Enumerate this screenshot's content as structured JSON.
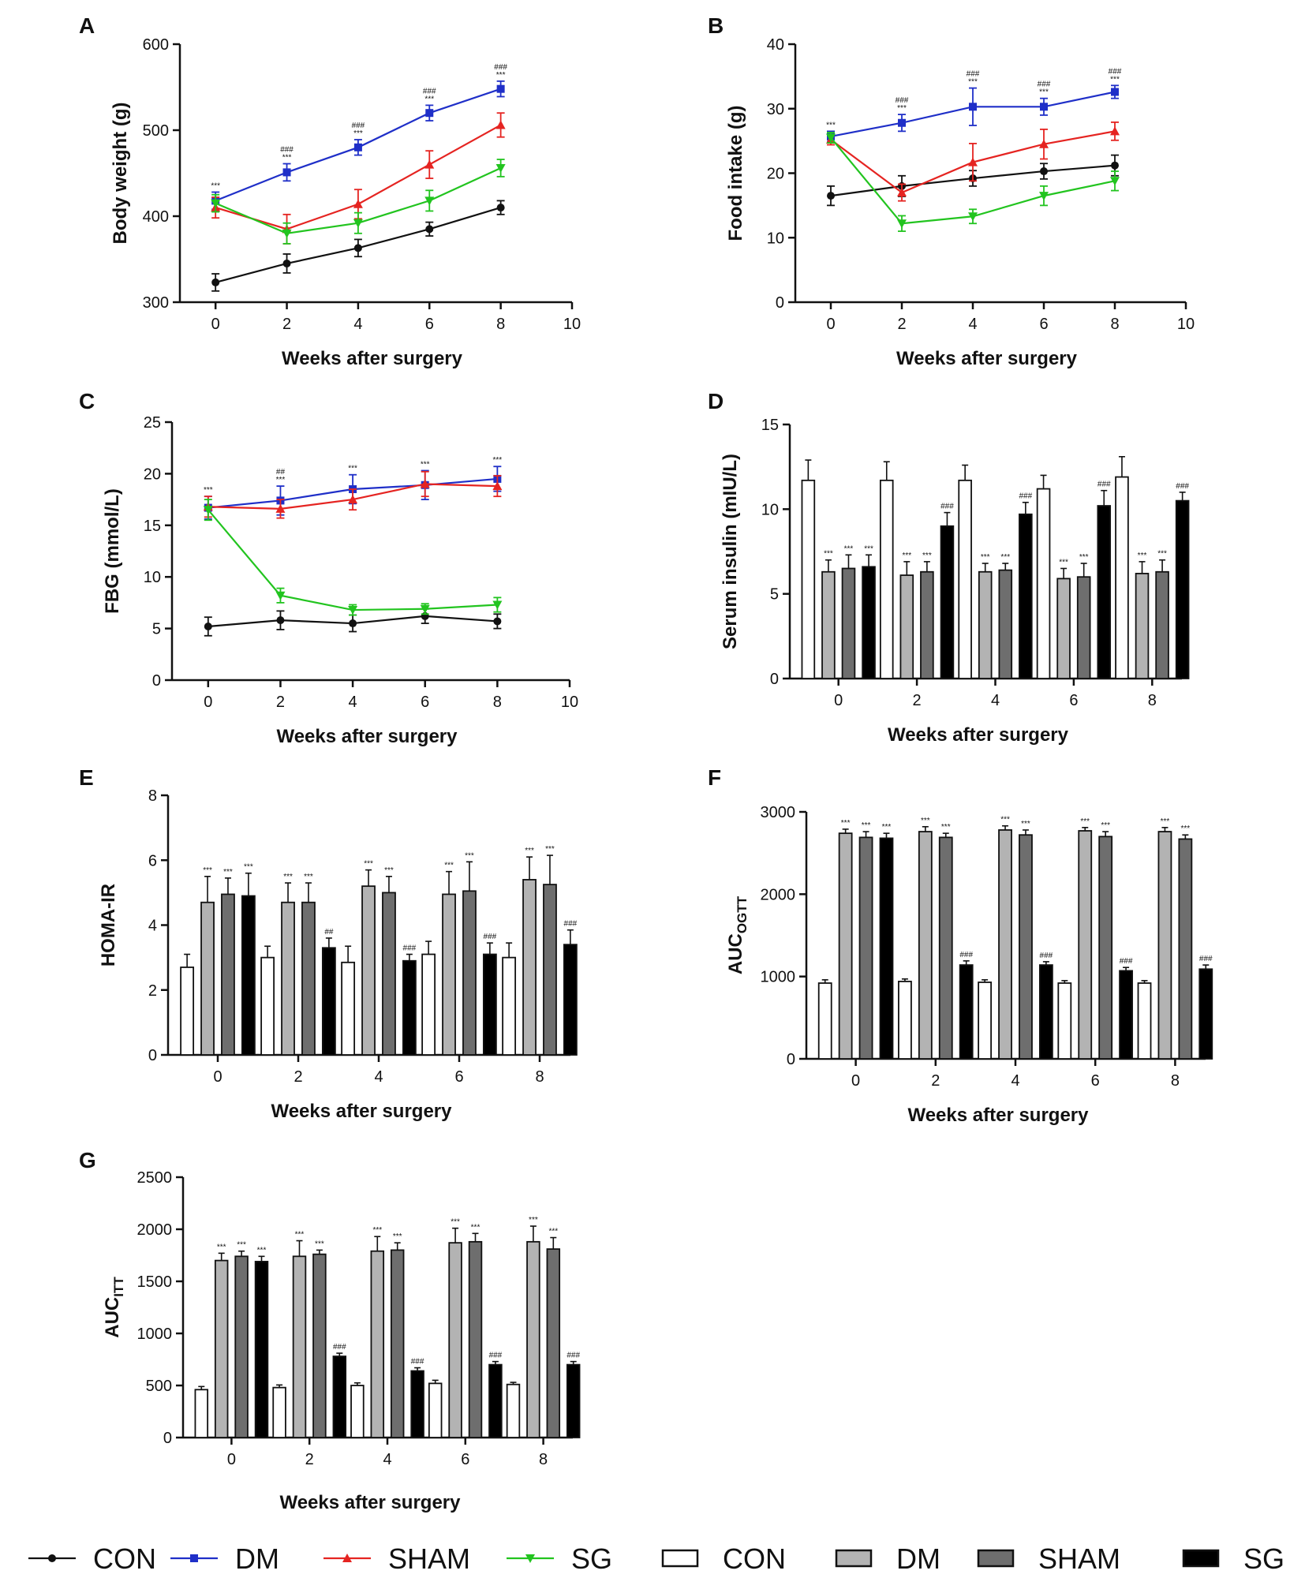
{
  "figure": {
    "background": "#ffffff"
  },
  "line_legend": [
    {
      "name": "CON",
      "color": "#111111",
      "marker": "circle"
    },
    {
      "name": "DM",
      "color": "#1f2fc8",
      "marker": "square"
    },
    {
      "name": "SHAM",
      "color": "#e52421",
      "marker": "triangle-up"
    },
    {
      "name": "SG",
      "color": "#22c41f",
      "marker": "triangle-down"
    }
  ],
  "bar_legend": [
    {
      "name": "CON",
      "fill": "#ffffff"
    },
    {
      "name": "DM",
      "fill": "#b3b3b3"
    },
    {
      "name": "SHAM",
      "fill": "#6e6e6e"
    },
    {
      "name": "SG",
      "fill": "#000000"
    }
  ],
  "chart_data": [
    {
      "panel": "A",
      "type": "line",
      "xlabel": "Weeks after surgery",
      "ylabel": "Body weight (g)",
      "xlim": [
        -1,
        10
      ],
      "ylim": [
        300,
        600
      ],
      "xticks": [
        0,
        2,
        4,
        6,
        8,
        10
      ],
      "yticks": [
        300,
        400,
        500,
        600
      ],
      "x": [
        0,
        2,
        4,
        6,
        8
      ],
      "series": [
        {
          "name": "CON",
          "values": [
            323,
            345,
            363,
            385,
            410
          ],
          "errors": [
            10,
            11,
            10,
            8,
            8
          ]
        },
        {
          "name": "DM",
          "values": [
            418,
            451,
            480,
            520,
            548
          ],
          "errors": [
            10,
            10,
            9,
            9,
            9
          ]
        },
        {
          "name": "SHAM",
          "values": [
            410,
            385,
            414,
            460,
            506
          ],
          "errors": [
            12,
            17,
            17,
            16,
            14
          ]
        },
        {
          "name": "SG",
          "values": [
            415,
            380,
            392,
            418,
            456
          ],
          "errors": [
            10,
            12,
            12,
            12,
            10
          ]
        }
      ],
      "annotations": [
        {
          "x": 0,
          "texts": [
            "***"
          ]
        },
        {
          "x": 2,
          "texts": [
            "###",
            "***"
          ]
        },
        {
          "x": 4,
          "texts": [
            "###",
            "***"
          ]
        },
        {
          "x": 6,
          "texts": [
            "###",
            "***"
          ]
        },
        {
          "x": 8,
          "texts": [
            "###",
            "***"
          ]
        }
      ]
    },
    {
      "panel": "B",
      "type": "line",
      "xlabel": "Weeks after surgery",
      "ylabel": "Food intake (g)",
      "xlim": [
        -1,
        10
      ],
      "ylim": [
        0,
        40
      ],
      "xticks": [
        0,
        2,
        4,
        6,
        8,
        10
      ],
      "yticks": [
        0,
        10,
        20,
        30,
        40
      ],
      "x": [
        0,
        2,
        4,
        6,
        8
      ],
      "series": [
        {
          "name": "CON",
          "values": [
            16.5,
            18.0,
            19.2,
            20.3,
            21.2
          ],
          "errors": [
            1.5,
            1.6,
            1.2,
            1.2,
            1.6
          ]
        },
        {
          "name": "DM",
          "values": [
            25.7,
            27.8,
            30.3,
            30.3,
            32.6
          ],
          "errors": [
            0.8,
            1.3,
            2.9,
            1.3,
            1.0
          ]
        },
        {
          "name": "SHAM",
          "values": [
            25.2,
            17.0,
            21.7,
            24.5,
            26.5
          ],
          "errors": [
            0.8,
            1.3,
            2.9,
            2.3,
            1.4
          ]
        },
        {
          "name": "SG",
          "values": [
            25.5,
            12.2,
            13.3,
            16.5,
            18.8
          ],
          "errors": [
            0.8,
            1.2,
            1.1,
            1.5,
            1.5
          ]
        }
      ],
      "annotations": [
        {
          "x": 0,
          "texts": [
            "***"
          ]
        },
        {
          "x": 2,
          "texts": [
            "###",
            "***"
          ]
        },
        {
          "x": 4,
          "texts": [
            "###",
            "***"
          ]
        },
        {
          "x": 6,
          "texts": [
            "###",
            "***"
          ]
        },
        {
          "x": 8,
          "texts": [
            "###",
            "***"
          ]
        }
      ]
    },
    {
      "panel": "C",
      "type": "line",
      "xlabel": "Weeks after surgery",
      "ylabel": "FBG (mmol/L)",
      "xlim": [
        -1,
        10
      ],
      "ylim": [
        0,
        25
      ],
      "xticks": [
        0,
        2,
        4,
        6,
        8,
        10
      ],
      "yticks": [
        0,
        5,
        10,
        15,
        20,
        25
      ],
      "x": [
        0,
        2,
        4,
        6,
        8
      ],
      "series": [
        {
          "name": "CON",
          "values": [
            5.2,
            5.8,
            5.5,
            6.2,
            5.7
          ],
          "errors": [
            0.9,
            0.9,
            0.8,
            0.7,
            0.7
          ]
        },
        {
          "name": "DM",
          "values": [
            16.7,
            17.4,
            18.5,
            18.9,
            19.5
          ],
          "errors": [
            1.1,
            1.4,
            1.4,
            1.4,
            1.2
          ]
        },
        {
          "name": "SHAM",
          "values": [
            16.8,
            16.6,
            17.5,
            19.0,
            18.8
          ],
          "errors": [
            1.0,
            0.9,
            1.0,
            1.2,
            1.0
          ]
        },
        {
          "name": "SG",
          "values": [
            16.5,
            8.2,
            6.8,
            6.9,
            7.3
          ],
          "errors": [
            1.0,
            0.7,
            0.5,
            0.5,
            0.7
          ]
        }
      ],
      "annotations": [
        {
          "x": 0,
          "texts": [
            "***"
          ]
        },
        {
          "x": 2,
          "texts": [
            "##",
            "***"
          ]
        },
        {
          "x": 4,
          "texts": [
            "***"
          ]
        },
        {
          "x": 6,
          "texts": [
            "***"
          ]
        },
        {
          "x": 8,
          "texts": [
            "***"
          ]
        }
      ]
    },
    {
      "panel": "D",
      "type": "bar",
      "xlabel": "Weeks after surgery",
      "ylabel": "Serum insulin (mIU/L)",
      "ylim": [
        0,
        15
      ],
      "yticks": [
        0,
        5,
        10,
        15
      ],
      "categories": [
        "0",
        "2",
        "4",
        "6",
        "8"
      ],
      "series": [
        {
          "name": "CON",
          "values": [
            11.7,
            11.7,
            11.7,
            11.2,
            11.9
          ],
          "errors": [
            1.2,
            1.1,
            0.9,
            0.8,
            1.2
          ]
        },
        {
          "name": "DM",
          "values": [
            6.3,
            6.1,
            6.3,
            5.9,
            6.2
          ],
          "errors": [
            0.7,
            0.8,
            0.5,
            0.6,
            0.7
          ]
        },
        {
          "name": "SHAM",
          "values": [
            6.5,
            6.3,
            6.4,
            6.0,
            6.3
          ],
          "errors": [
            0.8,
            0.6,
            0.4,
            0.8,
            0.7
          ]
        },
        {
          "name": "SG",
          "values": [
            6.6,
            9.0,
            9.7,
            10.2,
            10.5
          ],
          "errors": [
            0.7,
            0.8,
            0.7,
            0.9,
            0.5
          ]
        }
      ],
      "annotations": [
        {
          "category": "0",
          "texts": [
            "***",
            "***",
            "***"
          ]
        },
        {
          "category": "2",
          "texts": [
            "***",
            "***",
            "###"
          ]
        },
        {
          "category": "4",
          "texts": [
            "***",
            "***",
            "###"
          ]
        },
        {
          "category": "6",
          "texts": [
            "***",
            "***",
            "###"
          ]
        },
        {
          "category": "8",
          "texts": [
            "***",
            "***",
            "###"
          ]
        }
      ]
    },
    {
      "panel": "E",
      "type": "bar",
      "xlabel": "Weeks after surgery",
      "ylabel": "HOMA-IR",
      "ylim": [
        0,
        8
      ],
      "yticks": [
        0,
        2,
        4,
        6,
        8
      ],
      "categories": [
        "0",
        "2",
        "4",
        "6",
        "8"
      ],
      "series": [
        {
          "name": "CON",
          "values": [
            2.7,
            3.0,
            2.85,
            3.1,
            3.0
          ],
          "errors": [
            0.4,
            0.35,
            0.5,
            0.4,
            0.45
          ]
        },
        {
          "name": "DM",
          "values": [
            4.7,
            4.7,
            5.2,
            4.95,
            5.4
          ],
          "errors": [
            0.8,
            0.6,
            0.5,
            0.7,
            0.7
          ]
        },
        {
          "name": "SHAM",
          "values": [
            4.95,
            4.7,
            5.0,
            5.05,
            5.25
          ],
          "errors": [
            0.5,
            0.6,
            0.5,
            0.9,
            0.9
          ]
        },
        {
          "name": "SG",
          "values": [
            4.9,
            3.3,
            2.9,
            3.1,
            3.4
          ],
          "errors": [
            0.7,
            0.3,
            0.2,
            0.35,
            0.45
          ]
        }
      ],
      "annotations": [
        {
          "category": "0",
          "texts": [
            "***",
            "***",
            "***"
          ]
        },
        {
          "category": "2",
          "texts": [
            "***",
            "***",
            "##"
          ]
        },
        {
          "category": "4",
          "texts": [
            "***",
            "***",
            "###"
          ]
        },
        {
          "category": "6",
          "texts": [
            "***",
            "***",
            "###"
          ]
        },
        {
          "category": "8",
          "texts": [
            "***",
            "***",
            "###"
          ]
        }
      ]
    },
    {
      "panel": "F",
      "type": "bar",
      "xlabel": "Weeks after surgery",
      "ylabel": "AUC",
      "ylabel_subscript": "OGTT",
      "ylim": [
        0,
        3000
      ],
      "yticks": [
        0,
        1000,
        2000,
        3000
      ],
      "categories": [
        "0",
        "2",
        "4",
        "6",
        "8"
      ],
      "series": [
        {
          "name": "CON",
          "values": [
            920,
            940,
            930,
            920,
            920
          ],
          "errors": [
            40,
            30,
            30,
            30,
            30
          ]
        },
        {
          "name": "DM",
          "values": [
            2740,
            2760,
            2780,
            2770,
            2760
          ],
          "errors": [
            50,
            60,
            50,
            40,
            50
          ]
        },
        {
          "name": "SHAM",
          "values": [
            2690,
            2690,
            2720,
            2700,
            2670
          ],
          "errors": [
            70,
            50,
            60,
            60,
            50
          ]
        },
        {
          "name": "SG",
          "values": [
            2680,
            1140,
            1140,
            1070,
            1090
          ],
          "errors": [
            60,
            50,
            40,
            40,
            50
          ]
        }
      ],
      "annotations": [
        {
          "category": "0",
          "texts": [
            "***",
            "***",
            "***"
          ]
        },
        {
          "category": "2",
          "texts": [
            "***",
            "***",
            "###"
          ]
        },
        {
          "category": "4",
          "texts": [
            "***",
            "***",
            "###"
          ]
        },
        {
          "category": "6",
          "texts": [
            "***",
            "***",
            "###"
          ]
        },
        {
          "category": "8",
          "texts": [
            "***",
            "***",
            "###"
          ]
        }
      ]
    },
    {
      "panel": "G",
      "type": "bar",
      "xlabel": "Weeks after surgery",
      "ylabel": "AUC",
      "ylabel_subscript": "ITT",
      "ylim": [
        0,
        2500
      ],
      "yticks": [
        0,
        500,
        1000,
        1500,
        2000,
        2500
      ],
      "categories": [
        "0",
        "2",
        "4",
        "6",
        "8"
      ],
      "series": [
        {
          "name": "CON",
          "values": [
            460,
            480,
            500,
            520,
            510
          ],
          "errors": [
            30,
            25,
            25,
            30,
            20
          ]
        },
        {
          "name": "DM",
          "values": [
            1700,
            1740,
            1790,
            1870,
            1880
          ],
          "errors": [
            70,
            150,
            140,
            140,
            150
          ]
        },
        {
          "name": "SHAM",
          "values": [
            1740,
            1760,
            1800,
            1880,
            1810
          ],
          "errors": [
            50,
            40,
            70,
            80,
            110
          ]
        },
        {
          "name": "SG",
          "values": [
            1690,
            780,
            640,
            700,
            700
          ],
          "errors": [
            50,
            30,
            30,
            30,
            30
          ]
        }
      ],
      "annotations": [
        {
          "category": "0",
          "texts": [
            "***",
            "***",
            "***"
          ]
        },
        {
          "category": "2",
          "texts": [
            "***",
            "***",
            "###"
          ]
        },
        {
          "category": "4",
          "texts": [
            "***",
            "***",
            "###"
          ]
        },
        {
          "category": "6",
          "texts": [
            "***",
            "***",
            "###"
          ]
        },
        {
          "category": "8",
          "texts": [
            "***",
            "***",
            "###"
          ]
        }
      ]
    }
  ]
}
